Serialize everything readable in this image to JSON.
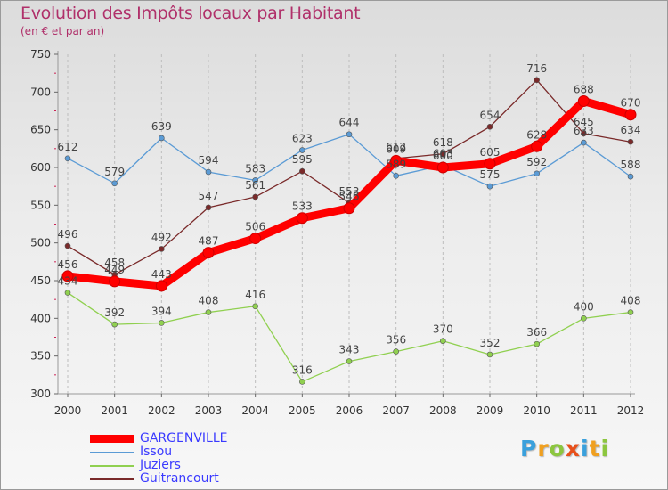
{
  "header": {
    "title": "Evolution des Impôts locaux par Habitant",
    "subtitle": "(en € et par an)"
  },
  "logo": {
    "letters": [
      {
        "ch": "P",
        "color": "#3aa0dc"
      },
      {
        "ch": "r",
        "color": "#f0a020"
      },
      {
        "ch": "o",
        "color": "#8cc63f"
      },
      {
        "ch": "x",
        "color": "#e8501a"
      },
      {
        "ch": "i",
        "color": "#3aa0dc"
      },
      {
        "ch": "t",
        "color": "#f0a020"
      },
      {
        "ch": "i",
        "color": "#8cc63f"
      }
    ]
  },
  "chart_data": {
    "type": "line",
    "title": "Evolution des Impôts locaux par Habitant",
    "subtitle": "(en € et par an)",
    "x": [
      2000,
      2001,
      2002,
      2003,
      2004,
      2005,
      2006,
      2007,
      2008,
      2009,
      2010,
      2011,
      2012
    ],
    "ylim": [
      300,
      750
    ],
    "yticks": [
      300,
      350,
      400,
      450,
      500,
      550,
      600,
      650,
      700,
      750
    ],
    "grid": "vertical",
    "legend_position": "bottom-left",
    "series": [
      {
        "name": "GARGENVILLE",
        "color": "#ff0000",
        "thick": true,
        "values": [
          456,
          449,
          443,
          487,
          506,
          533,
          546,
          609,
          600,
          605,
          628,
          688,
          670
        ],
        "labels": [
          "456",
          "449",
          "443",
          "487",
          "506",
          "533",
          "546",
          "609",
          "600",
          "605",
          "628",
          "688",
          "670"
        ]
      },
      {
        "name": "Issou",
        "color": "#5b9bd5",
        "thick": false,
        "values": [
          612,
          579,
          639,
          594,
          583,
          623,
          644,
          589,
          603,
          575,
          592,
          633,
          588
        ],
        "labels": [
          "612",
          "579",
          "639",
          "594",
          "583",
          "623",
          "644",
          "589",
          "603",
          "575",
          "592",
          "633",
          "588"
        ]
      },
      {
        "name": "Juziers",
        "color": "#90d050",
        "thick": false,
        "values": [
          434,
          392,
          394,
          408,
          416,
          316,
          343,
          356,
          370,
          352,
          366,
          400,
          408
        ],
        "labels": [
          "434",
          "392",
          "394",
          "408",
          "416",
          "316",
          "343",
          "356",
          "370",
          "352",
          "366",
          "400",
          "408"
        ]
      },
      {
        "name": "Guitrancourt",
        "color": "#7a2a2a",
        "thick": false,
        "values": [
          496,
          458,
          492,
          547,
          561,
          595,
          553,
          612,
          618,
          654,
          716,
          645,
          634
        ],
        "labels": [
          "496",
          "458",
          "492",
          "547",
          "561",
          "595",
          "553",
          "612",
          "618",
          "654",
          "716",
          "645",
          "634"
        ]
      }
    ]
  }
}
